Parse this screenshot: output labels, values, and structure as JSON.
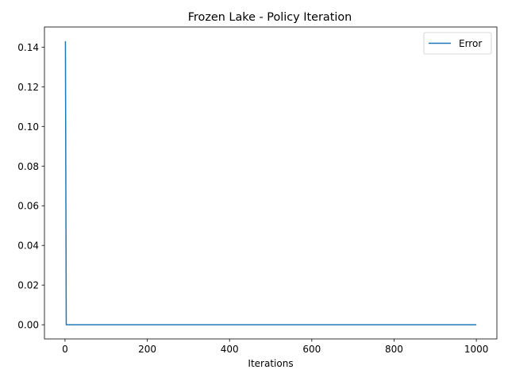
{
  "chart_data": {
    "type": "line",
    "title": "Frozen Lake - Policy Iteration",
    "xlabel": "Iterations",
    "ylabel": "",
    "xlim": [
      -50,
      1050
    ],
    "ylim": [
      -0.00715,
      0.15015
    ],
    "x_ticks": [
      0,
      200,
      400,
      600,
      800,
      1000
    ],
    "y_ticks": [
      0.0,
      0.02,
      0.04,
      0.06,
      0.08,
      0.1,
      0.12,
      0.14
    ],
    "y_tick_format_decimals": 2,
    "grid": false,
    "legend_position": "top-right",
    "series": [
      {
        "name": "Error",
        "color": "#1f77b4",
        "points": [
          [
            1,
            0.143
          ],
          [
            2,
            0.072
          ],
          [
            3,
            0.0
          ],
          [
            5,
            0.0
          ],
          [
            1000,
            0.0
          ]
        ]
      }
    ]
  }
}
